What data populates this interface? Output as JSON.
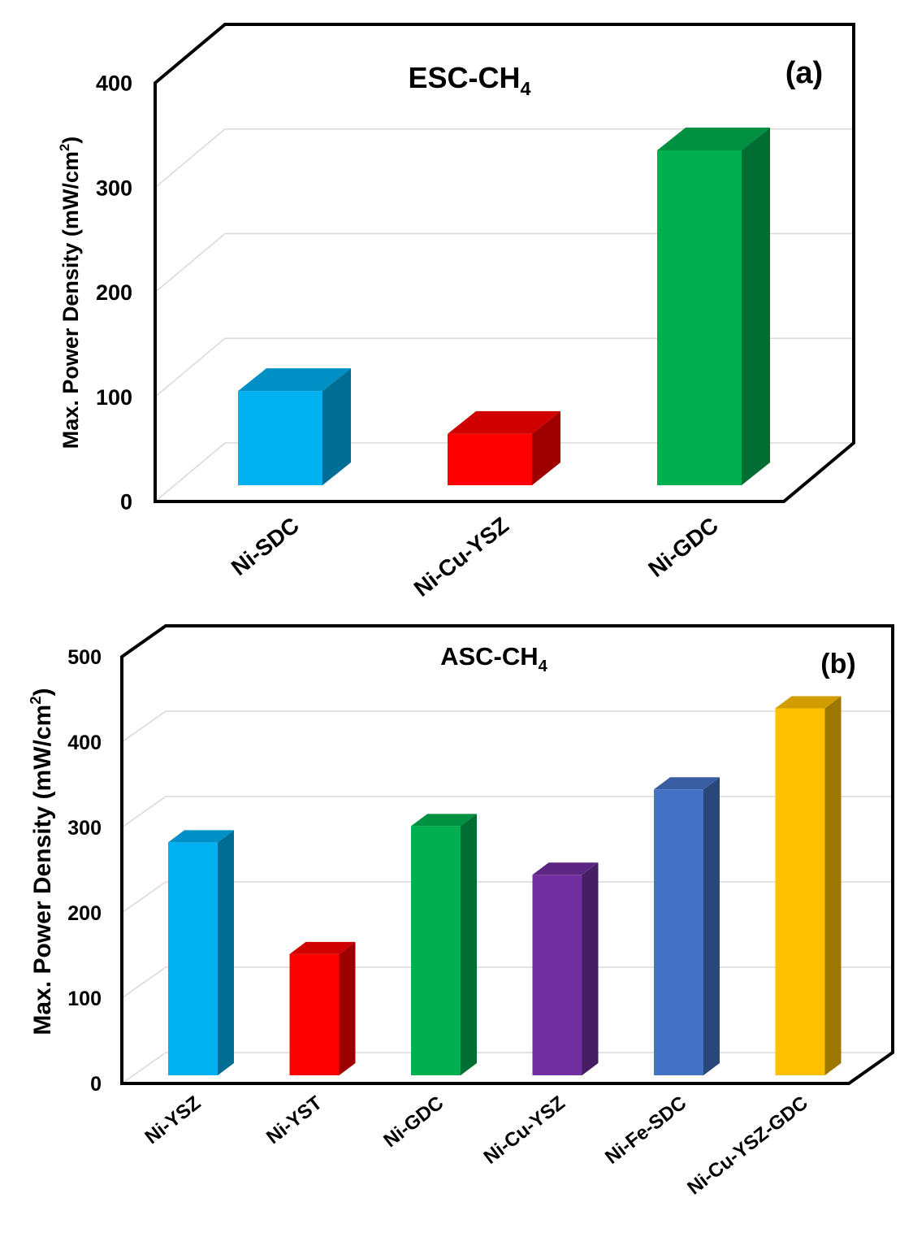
{
  "chart_data": [
    {
      "panel": "a",
      "type": "bar",
      "title": "ESC-CH",
      "title_subscript": "4",
      "panel_label": "(a)",
      "ylabel": "Max. Power Density (mW/cm",
      "ylabel_sup": "2",
      "ylabel_end": ")",
      "ylim": [
        0,
        400
      ],
      "yticks": [
        "0",
        "100",
        "200",
        "300",
        "400"
      ],
      "categories": [
        "Ni-SDC",
        "Ni-Cu-YSZ",
        "Ni-GDC"
      ],
      "values": [
        90,
        49,
        320
      ],
      "colors": [
        "#00b0f0",
        "#ff0000",
        "#00b050"
      ],
      "grid": true,
      "style": "3d"
    },
    {
      "panel": "b",
      "type": "bar",
      "title": "ASC-CH",
      "title_subscript": "4",
      "panel_label": "(b)",
      "ylabel": "Max. Power Density (mW/cm",
      "ylabel_sup": "2",
      "ylabel_end": ")",
      "ylim": [
        0,
        500
      ],
      "yticks": [
        "0",
        "100",
        "200",
        "300",
        "400",
        "500"
      ],
      "categories": [
        "Ni-YSZ",
        "Ni-YST",
        "Ni-GDC",
        "Ni-Cu-YSZ",
        "Ni-Fe-SDC",
        "Ni-Cu-YSZ-GDC"
      ],
      "values": [
        273,
        142,
        292,
        235,
        335,
        430
      ],
      "colors": [
        "#00b0f0",
        "#ff0000",
        "#00b050",
        "#7030a0",
        "#4472c4",
        "#ffc000"
      ],
      "grid": true,
      "style": "3d"
    }
  ]
}
